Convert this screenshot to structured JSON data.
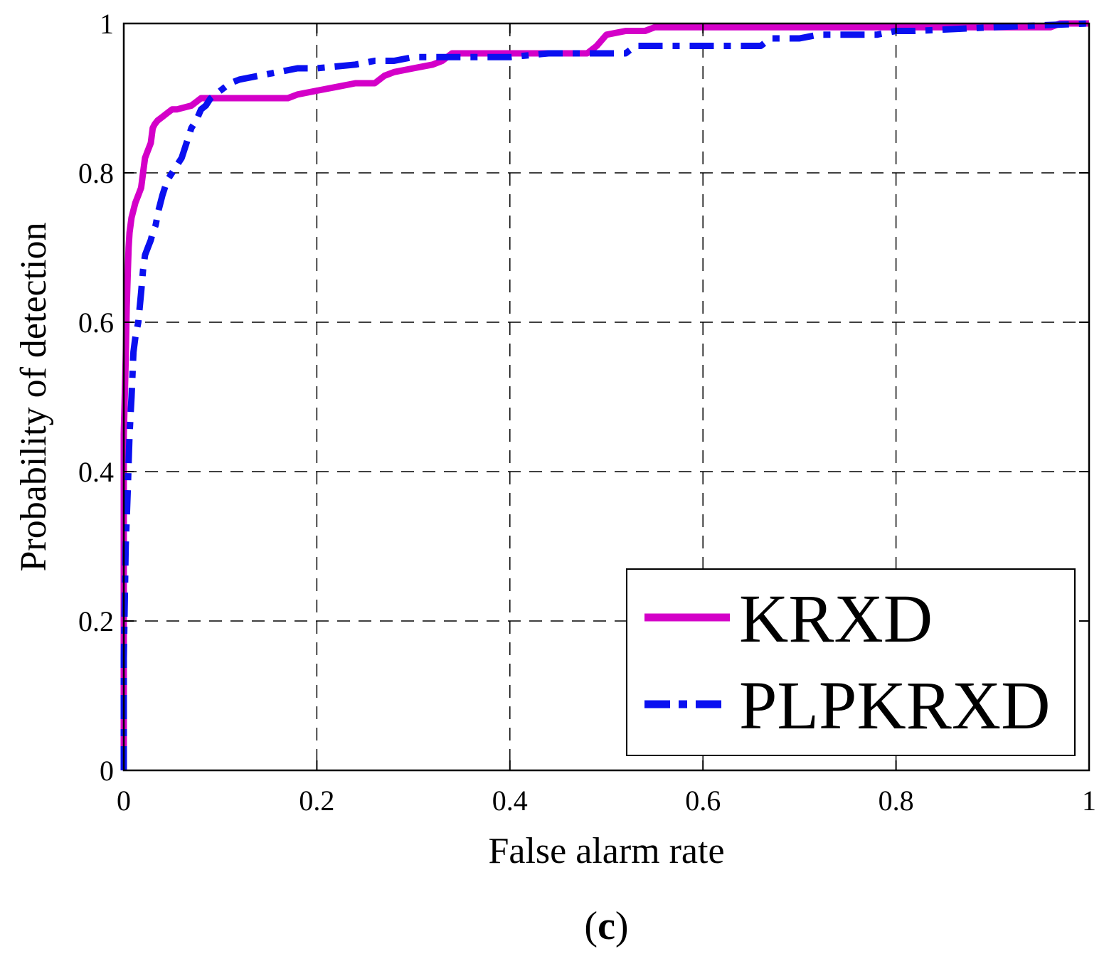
{
  "chart_data": {
    "type": "line",
    "title": "",
    "xlabel": "False alarm rate",
    "ylabel": "Probability of detection",
    "xlim": [
      0,
      1
    ],
    "ylim": [
      0,
      1
    ],
    "xticks": [
      "0",
      "0.2",
      "0.4",
      "0.6",
      "0.8",
      "1"
    ],
    "yticks": [
      "0",
      "0.2",
      "0.4",
      "0.6",
      "0.8",
      "1"
    ],
    "grid": true,
    "legend_position": "bottom-right",
    "caption": {
      "open": "(",
      "letter": "c",
      "close": ")"
    },
    "series": [
      {
        "name": "KRXD",
        "color": "#d400c8",
        "style": "solid",
        "x": [
          0,
          0,
          0.002,
          0.003,
          0.004,
          0.005,
          0.006,
          0.008,
          0.01,
          0.012,
          0.015,
          0.018,
          0.02,
          0.022,
          0.025,
          0.028,
          0.03,
          0.032,
          0.035,
          0.04,
          0.045,
          0.05,
          0.055,
          0.07,
          0.075,
          0.08,
          0.085,
          0.09,
          0.1,
          0.17,
          0.18,
          0.2,
          0.22,
          0.24,
          0.26,
          0.27,
          0.28,
          0.3,
          0.32,
          0.33,
          0.34,
          0.4,
          0.48,
          0.49,
          0.5,
          0.52,
          0.54,
          0.55,
          0.7,
          0.8,
          0.9,
          0.96,
          0.97,
          0.98,
          1
        ],
        "y": [
          0,
          0.45,
          0.55,
          0.62,
          0.66,
          0.7,
          0.72,
          0.74,
          0.75,
          0.76,
          0.77,
          0.78,
          0.8,
          0.82,
          0.83,
          0.84,
          0.86,
          0.865,
          0.87,
          0.875,
          0.88,
          0.885,
          0.885,
          0.89,
          0.895,
          0.9,
          0.9,
          0.9,
          0.9,
          0.9,
          0.905,
          0.91,
          0.915,
          0.92,
          0.92,
          0.93,
          0.935,
          0.94,
          0.945,
          0.95,
          0.96,
          0.96,
          0.96,
          0.97,
          0.985,
          0.99,
          0.99,
          0.995,
          0.995,
          0.995,
          0.995,
          0.995,
          1,
          1,
          1
        ]
      },
      {
        "name": "PLPKRXD",
        "color": "#0a10f0",
        "style": "dashdot",
        "x": [
          0,
          0,
          0.002,
          0.004,
          0.006,
          0.008,
          0.01,
          0.012,
          0.015,
          0.018,
          0.02,
          0.022,
          0.025,
          0.028,
          0.03,
          0.033,
          0.036,
          0.04,
          0.045,
          0.05,
          0.055,
          0.06,
          0.065,
          0.07,
          0.075,
          0.08,
          0.085,
          0.09,
          0.1,
          0.11,
          0.12,
          0.14,
          0.16,
          0.18,
          0.2,
          0.24,
          0.26,
          0.28,
          0.3,
          0.32,
          0.4,
          0.44,
          0.47,
          0.5,
          0.52,
          0.53,
          0.55,
          0.6,
          0.66,
          0.67,
          0.7,
          0.72,
          0.78,
          0.8,
          0.82,
          0.9,
          1
        ],
        "y": [
          0,
          0.15,
          0.3,
          0.37,
          0.45,
          0.5,
          0.56,
          0.58,
          0.6,
          0.64,
          0.67,
          0.69,
          0.7,
          0.71,
          0.72,
          0.73,
          0.75,
          0.77,
          0.79,
          0.8,
          0.81,
          0.82,
          0.84,
          0.86,
          0.87,
          0.885,
          0.89,
          0.9,
          0.91,
          0.92,
          0.925,
          0.93,
          0.935,
          0.94,
          0.94,
          0.945,
          0.95,
          0.95,
          0.955,
          0.955,
          0.955,
          0.96,
          0.96,
          0.96,
          0.96,
          0.97,
          0.97,
          0.97,
          0.97,
          0.98,
          0.98,
          0.985,
          0.985,
          0.99,
          0.99,
          0.995,
          1
        ]
      }
    ]
  }
}
